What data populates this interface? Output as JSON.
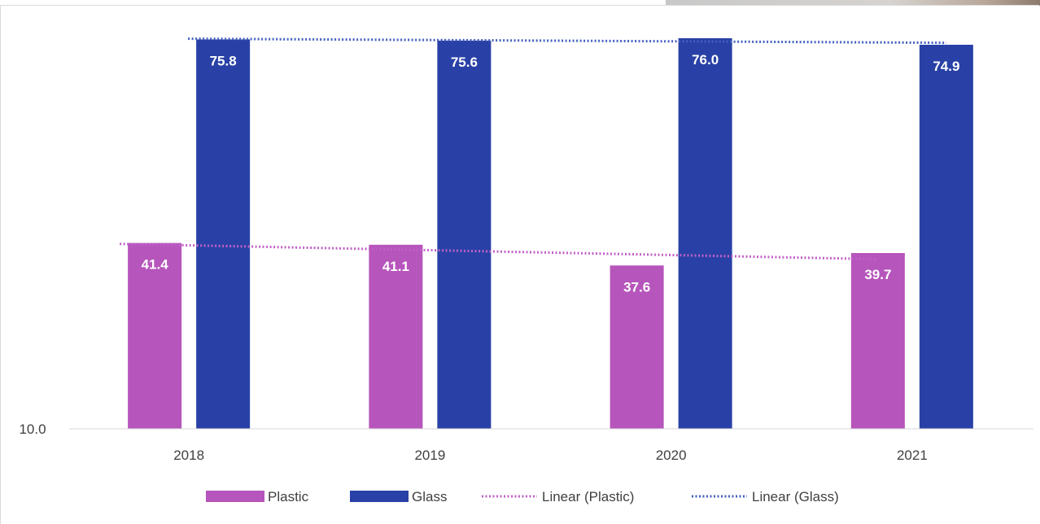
{
  "chart_data": {
    "type": "bar",
    "categories": [
      "2018",
      "2019",
      "2020",
      "2021"
    ],
    "series": [
      {
        "name": "Plastic",
        "values": [
          41.4,
          41.1,
          37.6,
          39.7
        ],
        "color": "#b655bb"
      },
      {
        "name": "Glass",
        "values": [
          75.8,
          75.6,
          76.0,
          74.9
        ],
        "color": "#2941a6"
      }
    ],
    "trendlines": [
      {
        "name": "Linear (Plastic)",
        "of": "Plastic",
        "style": "dotted",
        "color": "#c160c8"
      },
      {
        "name": "Linear (Glass)",
        "of": "Glass",
        "style": "dotted",
        "color": "#4360c0"
      }
    ],
    "y_tick_labels": [
      "10.0"
    ],
    "ylim": [
      10,
      76
    ],
    "grid": false,
    "legend_position": "bottom"
  }
}
